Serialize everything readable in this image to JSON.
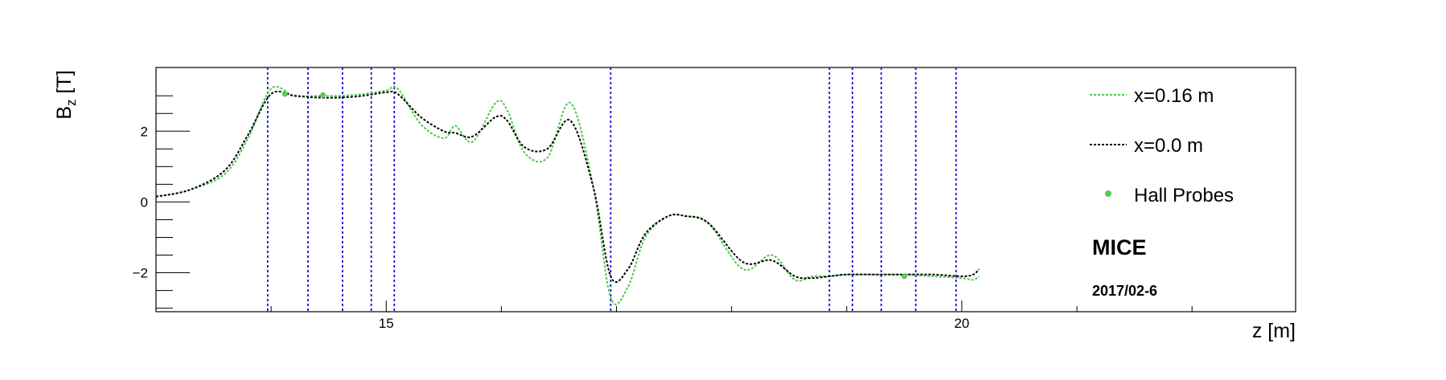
{
  "chart_data": {
    "type": "line",
    "xlabel": "z [m]",
    "ylabel_main": "B",
    "ylabel_sub": "z",
    "ylabel_unit": " [T]",
    "xlim": [
      13.0,
      22.9
    ],
    "ylim": [
      -3.1,
      3.8
    ],
    "x_ticks": [
      15,
      20
    ],
    "x_tick_labels": [
      "15",
      "20"
    ],
    "y_ticks": [
      2,
      0,
      -2
    ],
    "y_tick_labels": [
      "2",
      "0",
      "−2"
    ],
    "grid": false,
    "legend_position": "top-right",
    "annotation_title": "MICE",
    "annotation_date": "2017/02-6",
    "colors": {
      "green": "#4bc94b",
      "black": "#000000",
      "vline": "#1010d8",
      "probe": "#55cc55"
    },
    "series": [
      {
        "name": "x=0.16 m",
        "style": "dashed",
        "color": "#4bc94b",
        "x": [
          13.0,
          13.3,
          13.6,
          13.8,
          14.0,
          14.2,
          14.4,
          14.6,
          14.8,
          15.0,
          15.1,
          15.3,
          15.5,
          15.6,
          15.75,
          15.95,
          16.05,
          16.2,
          16.4,
          16.6,
          16.8,
          16.95,
          17.1,
          17.25,
          17.45,
          17.6,
          17.8,
          18.1,
          18.35,
          18.55,
          18.7,
          18.85,
          19.0,
          19.25,
          19.5,
          19.75,
          20.0,
          20.1,
          20.15
        ],
        "values": [
          0.15,
          0.35,
          0.8,
          1.8,
          3.2,
          3.0,
          3.0,
          3.0,
          3.05,
          3.15,
          3.2,
          2.2,
          1.8,
          2.15,
          1.7,
          2.8,
          2.6,
          1.4,
          1.25,
          2.8,
          0.4,
          -2.7,
          -2.4,
          -1.0,
          -0.4,
          -0.4,
          -0.6,
          -1.9,
          -1.5,
          -2.2,
          -2.1,
          -2.1,
          -2.05,
          -2.05,
          -2.05,
          -2.1,
          -2.15,
          -2.2,
          -2.1
        ]
      },
      {
        "name": "x=0.0 m",
        "style": "dashed",
        "color": "#000000",
        "x": [
          13.0,
          13.3,
          13.6,
          13.8,
          14.0,
          14.2,
          14.4,
          14.6,
          14.8,
          15.0,
          15.1,
          15.3,
          15.5,
          15.6,
          15.75,
          15.95,
          16.05,
          16.2,
          16.4,
          16.6,
          16.8,
          16.95,
          17.1,
          17.25,
          17.45,
          17.6,
          17.8,
          18.1,
          18.35,
          18.55,
          18.7,
          18.85,
          19.0,
          19.25,
          19.5,
          19.75,
          20.0,
          20.1,
          20.15
        ],
        "values": [
          0.15,
          0.35,
          0.9,
          1.9,
          3.05,
          3.0,
          2.95,
          2.95,
          3.0,
          3.1,
          3.05,
          2.4,
          2.0,
          1.95,
          1.85,
          2.4,
          2.3,
          1.55,
          1.5,
          2.3,
          0.4,
          -2.1,
          -1.9,
          -0.9,
          -0.4,
          -0.4,
          -0.6,
          -1.7,
          -1.65,
          -2.1,
          -2.15,
          -2.1,
          -2.05,
          -2.05,
          -2.05,
          -2.05,
          -2.1,
          -2.05,
          -1.9
        ]
      },
      {
        "name": "Hall Probes",
        "style": "markers",
        "color": "#55cc55",
        "x": [
          14.12,
          14.45,
          19.5
        ],
        "values": [
          3.05,
          3.02,
          -2.1
        ]
      }
    ],
    "vertical_lines_x": [
      13.97,
      14.32,
      14.62,
      14.87,
      15.07,
      16.95,
      18.85,
      19.05,
      19.3,
      19.6,
      19.95
    ]
  }
}
